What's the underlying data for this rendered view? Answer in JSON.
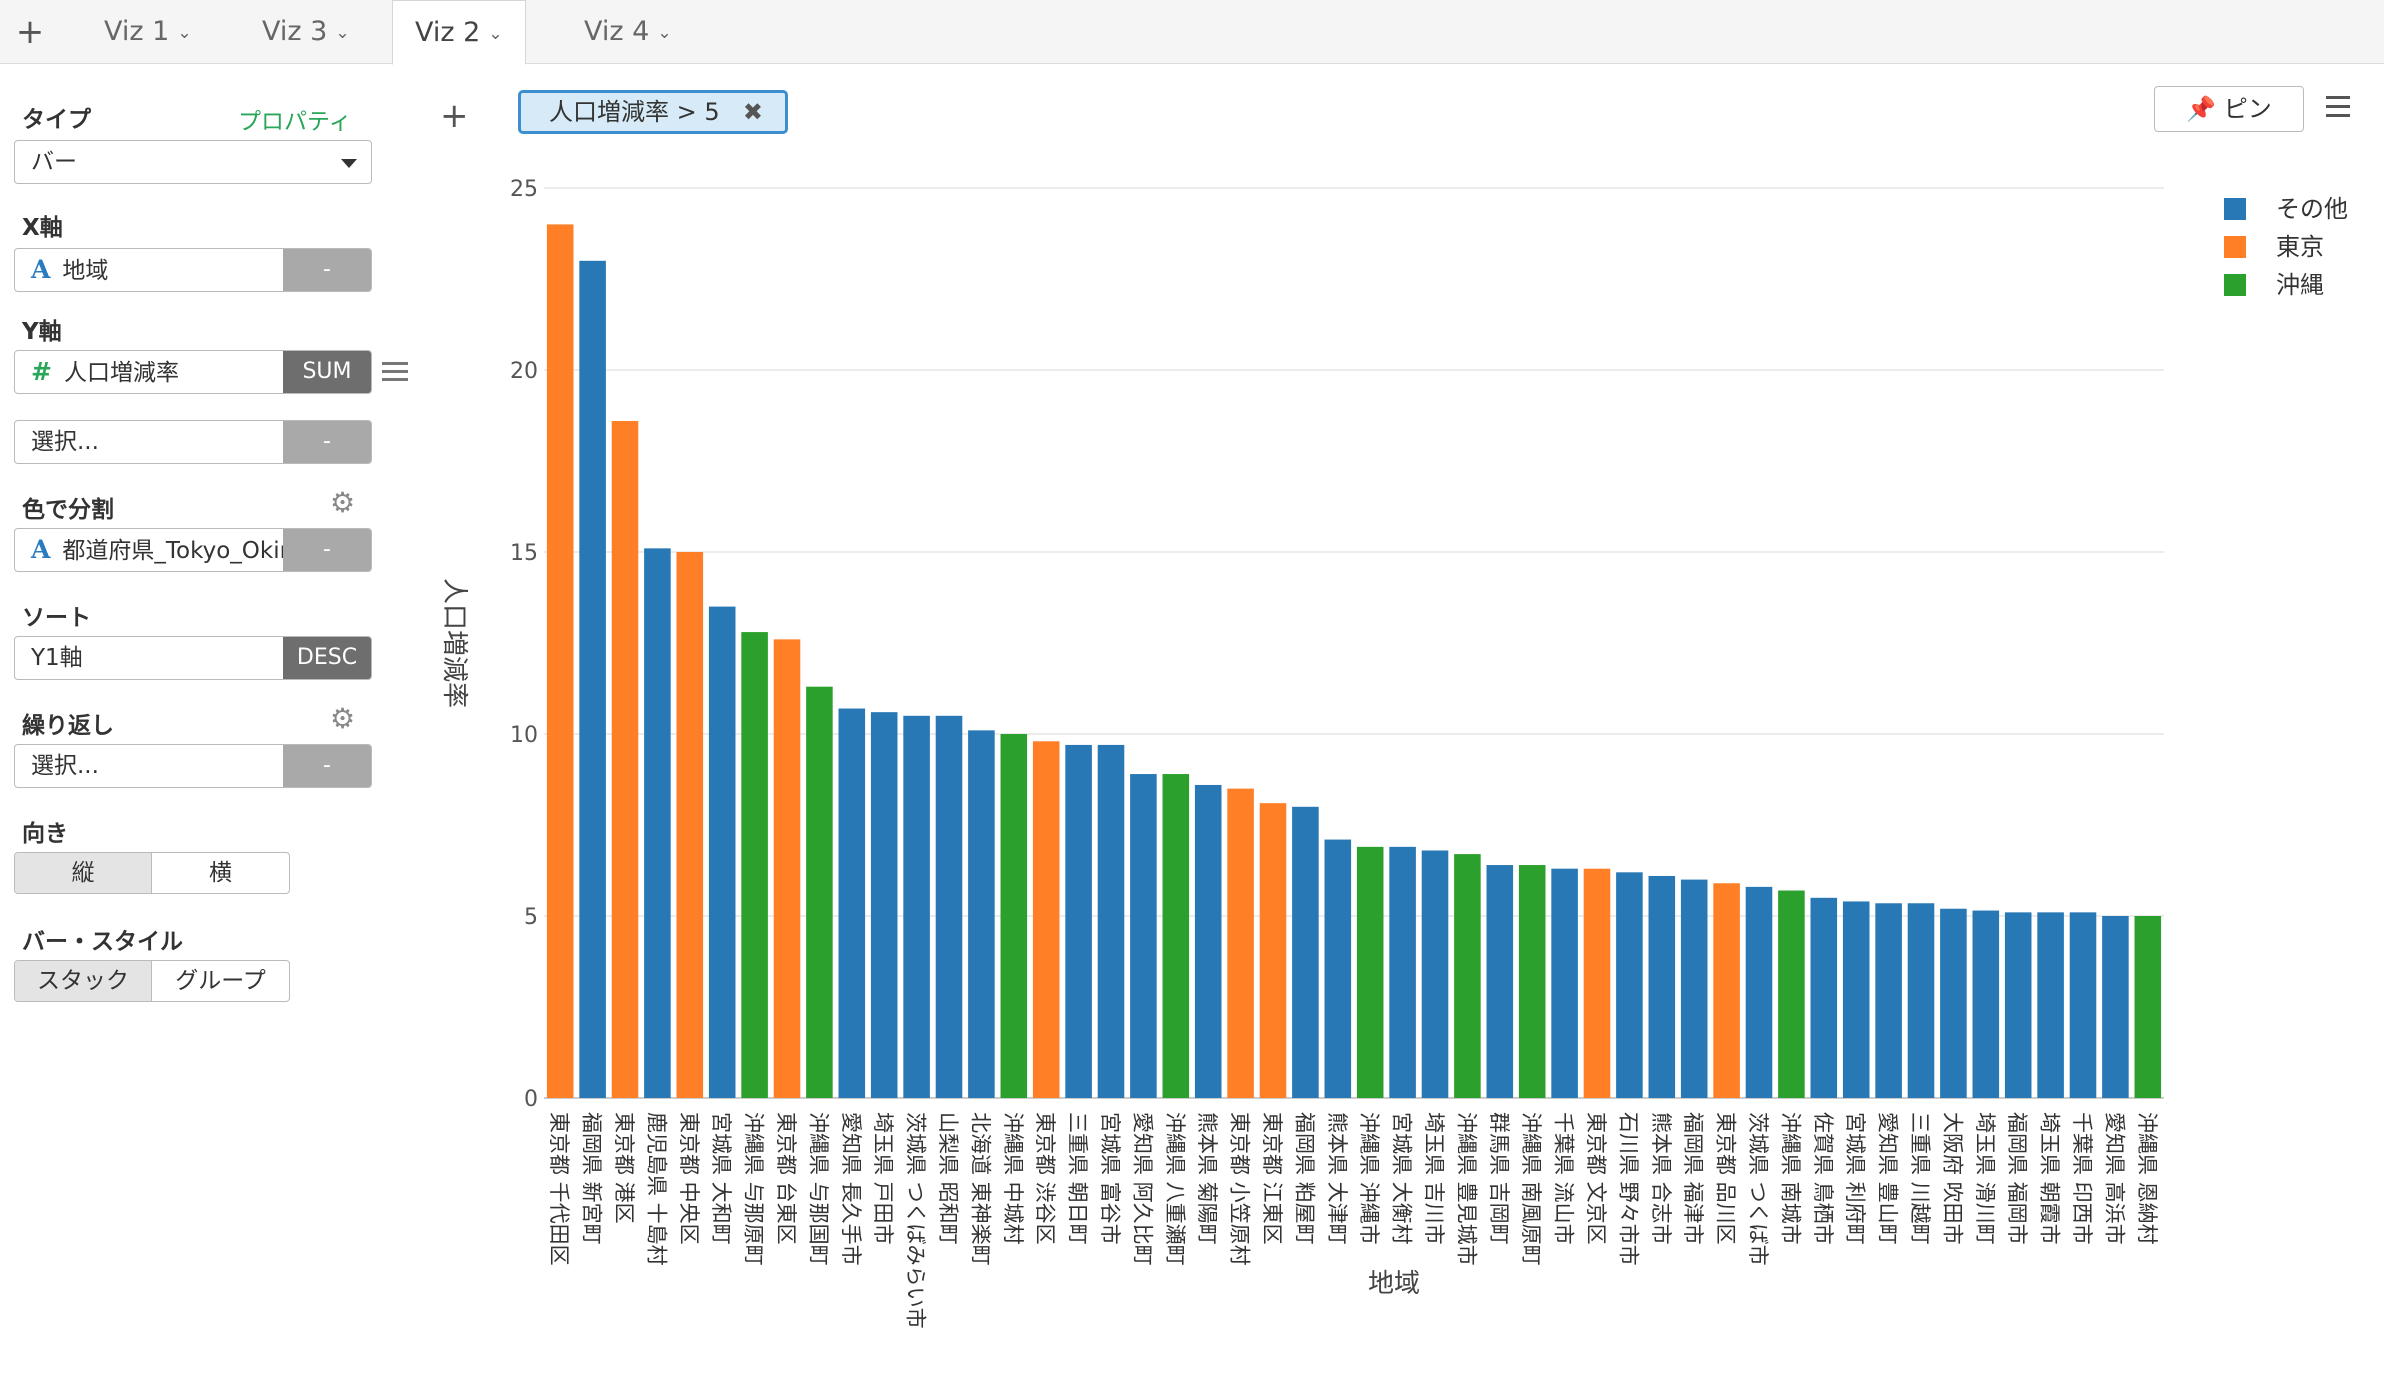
{
  "tabs": [
    {
      "label": "Viz 1",
      "active": false
    },
    {
      "label": "Viz 3",
      "active": false
    },
    {
      "label": "Viz 2",
      "active": true
    },
    {
      "label": "Viz 4",
      "active": false
    }
  ],
  "panel": {
    "type_label": "タイプ",
    "property_link": "プロパティ",
    "type_value": "バー",
    "x_axis_label": "X軸",
    "x_field": "地域",
    "x_btn": "-",
    "y_axis_label": "Y軸",
    "y_field": "人口増減率",
    "y_agg": "SUM",
    "y2_placeholder": "選択...",
    "y2_btn": "-",
    "color_label": "色で分割",
    "color_field": "都道府県_Tokyo_Okinawa",
    "color_btn": "-",
    "sort_label": "ソート",
    "sort_field": "Y1軸",
    "sort_order": "DESC",
    "repeat_label": "繰り返し",
    "repeat_placeholder": "選択...",
    "repeat_btn": "-",
    "orientation_label": "向き",
    "orientation_options": [
      "縦",
      "横"
    ],
    "bar_style_label": "バー・スタイル",
    "bar_style_options": [
      "スタック",
      "グループ"
    ]
  },
  "filter": {
    "text": "人口増減率 > 5"
  },
  "pin_label": "ピン",
  "icons": {
    "add": "plus-icon",
    "type_field_text": "A",
    "type_field_number": "#",
    "gear": "gear-icon",
    "pin": "pin-icon",
    "close": "close-icon"
  },
  "colors": {
    "other": "#2878b5",
    "tokyo": "#ff7f27",
    "okinawa": "#2ca02c"
  },
  "chart_data": {
    "type": "bar",
    "xlabel": "地域",
    "ylabel": "人口増減率",
    "ylim": [
      0,
      25
    ],
    "yticks": [
      0,
      5,
      10,
      15,
      20,
      25
    ],
    "grid": true,
    "legend_position": "top-right",
    "series_names": [
      "その他",
      "東京",
      "沖縄"
    ],
    "categories": [
      "東京都 千代田区",
      "福岡県 新宮町",
      "東京都 港区",
      "鹿児島県 十島村",
      "東京都 中央区",
      "宮城県 大和町",
      "沖縄県 与那原町",
      "東京都 台東区",
      "沖縄県 与那国町",
      "愛知県 長久手市",
      "埼玉県 戸田市",
      "茨城県 つくばみらい市",
      "山梨県 昭和町",
      "北海道 東神楽町",
      "沖縄県 中城村",
      "東京都 渋谷区",
      "三重県 朝日町",
      "宮城県 富谷市",
      "愛知県 阿久比町",
      "沖縄県 八重瀬町",
      "熊本県 菊陽町",
      "東京都 小笠原村",
      "東京都 江東区",
      "福岡県 粕屋町",
      "熊本県 大津町",
      "沖縄県 沖縄市",
      "宮城県 大衡村",
      "埼玉県 吉川市",
      "沖縄県 豊見城市",
      "群馬県 吉岡町",
      "沖縄県 南風原町",
      "千葉県 流山市",
      "東京都 文京区",
      "石川県 野々市市",
      "熊本県 合志市",
      "福岡県 福津市",
      "東京都 品川区",
      "茨城県 つくば市",
      "沖縄県 南城市",
      "佐賀県 鳥栖市",
      "宮城県 利府町",
      "愛知県 豊山町",
      "三重県 川越町",
      "大阪府 吹田市",
      "埼玉県 滑川町",
      "福岡県 福岡市",
      "埼玉県 朝霞市",
      "千葉県 印西市",
      "愛知県 高浜市",
      "沖縄県 恩納村"
    ],
    "values": [
      24.0,
      23.0,
      18.6,
      15.1,
      15.0,
      13.5,
      12.8,
      12.6,
      11.3,
      10.7,
      10.6,
      10.5,
      10.5,
      10.1,
      10.0,
      9.8,
      9.7,
      9.7,
      8.9,
      8.9,
      8.6,
      8.5,
      8.1,
      8.0,
      7.1,
      6.9,
      6.9,
      6.8,
      6.7,
      6.4,
      6.4,
      6.3,
      6.3,
      6.2,
      6.1,
      6.0,
      5.9,
      5.8,
      5.7,
      5.5,
      5.4,
      5.35,
      5.35,
      5.2,
      5.15,
      5.1,
      5.1,
      5.1,
      5.0,
      5.0
    ],
    "groups": [
      "東京",
      "その他",
      "東京",
      "その他",
      "東京",
      "その他",
      "沖縄",
      "東京",
      "沖縄",
      "その他",
      "その他",
      "その他",
      "その他",
      "その他",
      "沖縄",
      "東京",
      "その他",
      "その他",
      "その他",
      "沖縄",
      "その他",
      "東京",
      "東京",
      "その他",
      "その他",
      "沖縄",
      "その他",
      "その他",
      "沖縄",
      "その他",
      "沖縄",
      "その他",
      "東京",
      "その他",
      "その他",
      "その他",
      "東京",
      "その他",
      "沖縄",
      "その他",
      "その他",
      "その他",
      "その他",
      "その他",
      "その他",
      "その他",
      "その他",
      "その他",
      "その他",
      "沖縄"
    ]
  }
}
